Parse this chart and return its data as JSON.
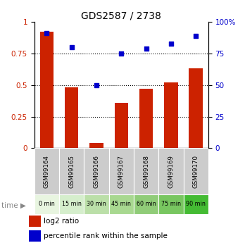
{
  "title": "GDS2587 / 2738",
  "samples": [
    "GSM99164",
    "GSM99165",
    "GSM99166",
    "GSM99167",
    "GSM99168",
    "GSM99169",
    "GSM99170"
  ],
  "time_labels": [
    "0 min",
    "15 min",
    "30 min",
    "45 min",
    "60 min",
    "75 min",
    "90 min"
  ],
  "log2_ratio": [
    0.92,
    0.48,
    0.04,
    0.36,
    0.47,
    0.52,
    0.63
  ],
  "percentile_rank": [
    91,
    80,
    50,
    75,
    79,
    83,
    89
  ],
  "bar_color": "#cc2200",
  "dot_color": "#0000cc",
  "ylim_left": [
    0,
    1.0
  ],
  "ylim_right": [
    0,
    100
  ],
  "yticks_left": [
    0,
    0.25,
    0.5,
    0.75,
    1.0
  ],
  "ytick_left_labels": [
    "0",
    "0.25",
    "0.5",
    "0.75",
    "1"
  ],
  "yticks_right": [
    0,
    25,
    50,
    75,
    100
  ],
  "ytick_right_labels": [
    "0",
    "25",
    "50",
    "75",
    "100%"
  ],
  "grid_lines": [
    0.25,
    0.5,
    0.75
  ],
  "sample_bg_color": "#cccccc",
  "time_colors": [
    "#e8f5e0",
    "#d8f0c8",
    "#c8eab0",
    "#b8e498",
    "#a8de80",
    "#98d868",
    "#66cc44"
  ],
  "legend_red_label": "log2 ratio",
  "legend_blue_label": "percentile rank within the sample",
  "background_color": "#ffffff"
}
